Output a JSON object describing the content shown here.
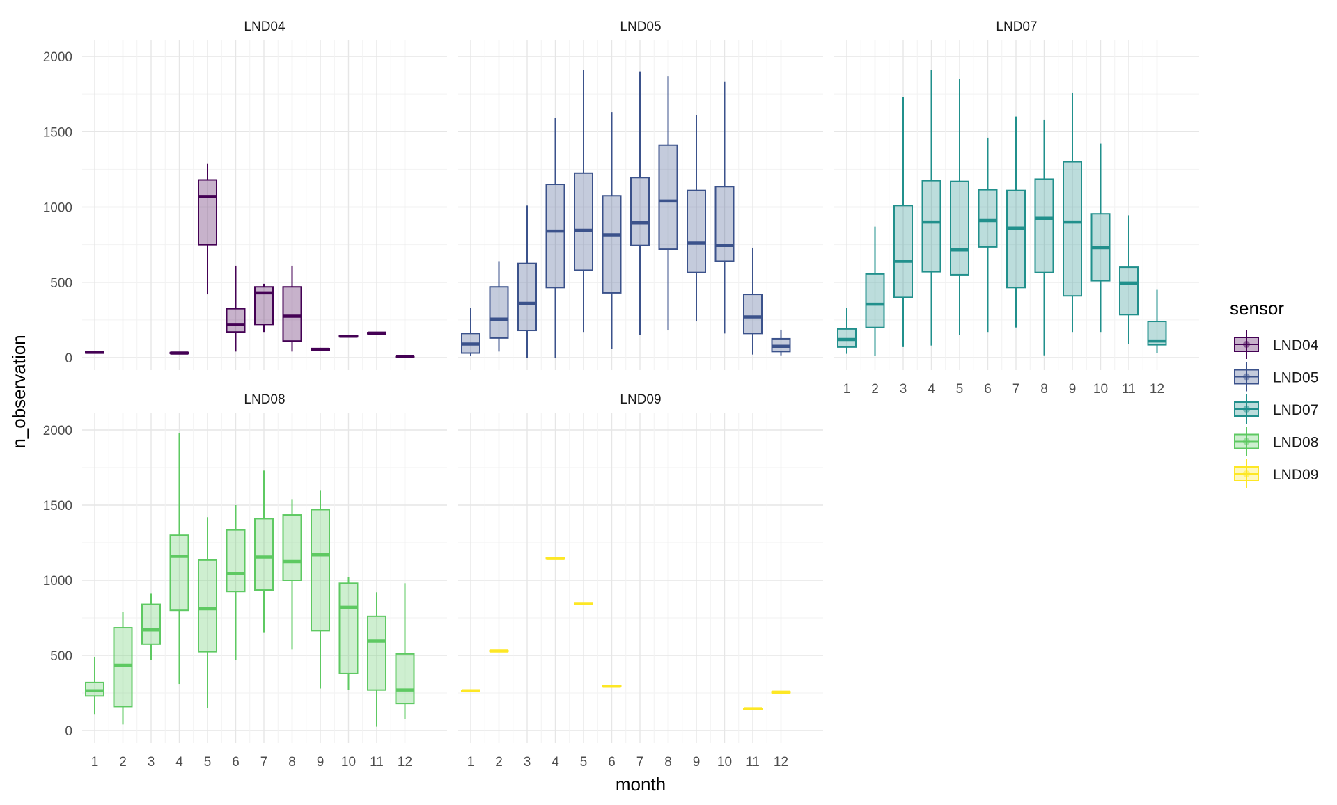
{
  "chart_data": {
    "type": "boxplot",
    "facet_by": "sensor",
    "xlabel": "month",
    "ylabel": "n_observation",
    "ylim": [
      0,
      2000
    ],
    "yticks": [
      0,
      500,
      1000,
      1500,
      2000
    ],
    "months": [
      1,
      2,
      3,
      4,
      5,
      6,
      7,
      8,
      9,
      10,
      11,
      12
    ],
    "grid": true,
    "legend": {
      "title": "sensor",
      "position": "right"
    },
    "panels": [
      {
        "name": "LND04",
        "color": "#440154",
        "boxes": [
          {
            "month": 1,
            "min": 30,
            "q1": 30,
            "median": 35,
            "q3": 38,
            "max": 40
          },
          {
            "month": 4,
            "min": 25,
            "q1": 28,
            "median": 30,
            "q3": 33,
            "max": 35
          },
          {
            "month": 5,
            "min": 420,
            "q1": 750,
            "median": 1070,
            "q3": 1180,
            "max": 1290
          },
          {
            "month": 6,
            "min": 40,
            "q1": 170,
            "median": 220,
            "q3": 325,
            "max": 610
          },
          {
            "month": 7,
            "min": 170,
            "q1": 220,
            "median": 430,
            "q3": 470,
            "max": 490
          },
          {
            "month": 8,
            "min": 40,
            "q1": 110,
            "median": 275,
            "q3": 470,
            "max": 610
          },
          {
            "month": 9,
            "min": 45,
            "q1": 48,
            "median": 55,
            "q3": 60,
            "max": 65
          },
          {
            "month": 10,
            "min": 135,
            "q1": 138,
            "median": 142,
            "q3": 146,
            "max": 150
          },
          {
            "month": 11,
            "min": 155,
            "q1": 158,
            "median": 162,
            "q3": 166,
            "max": 170
          },
          {
            "month": 12,
            "min": 5,
            "q1": 6,
            "median": 8,
            "q3": 10,
            "max": 12
          }
        ]
      },
      {
        "name": "LND05",
        "color": "#3b528b",
        "boxes": [
          {
            "month": 1,
            "min": 10,
            "q1": 30,
            "median": 90,
            "q3": 160,
            "max": 330
          },
          {
            "month": 2,
            "min": 40,
            "q1": 130,
            "median": 255,
            "q3": 470,
            "max": 640
          },
          {
            "month": 3,
            "min": 0,
            "q1": 180,
            "median": 360,
            "q3": 625,
            "max": 1010
          },
          {
            "month": 4,
            "min": 0,
            "q1": 465,
            "median": 840,
            "q3": 1150,
            "max": 1590
          },
          {
            "month": 5,
            "min": 170,
            "q1": 580,
            "median": 845,
            "q3": 1225,
            "max": 1910
          },
          {
            "month": 6,
            "min": 60,
            "q1": 430,
            "median": 815,
            "q3": 1075,
            "max": 1630
          },
          {
            "month": 7,
            "min": 150,
            "q1": 745,
            "median": 895,
            "q3": 1195,
            "max": 1900
          },
          {
            "month": 8,
            "min": 180,
            "q1": 720,
            "median": 1040,
            "q3": 1410,
            "max": 1870
          },
          {
            "month": 9,
            "min": 240,
            "q1": 565,
            "median": 760,
            "q3": 1110,
            "max": 1610
          },
          {
            "month": 10,
            "min": 160,
            "q1": 640,
            "median": 745,
            "q3": 1135,
            "max": 1830
          },
          {
            "month": 11,
            "min": 20,
            "q1": 160,
            "median": 270,
            "q3": 420,
            "max": 730
          },
          {
            "month": 12,
            "min": 15,
            "q1": 40,
            "median": 75,
            "q3": 125,
            "max": 185
          }
        ]
      },
      {
        "name": "LND07",
        "color": "#21908c",
        "boxes": [
          {
            "month": 1,
            "min": 25,
            "q1": 70,
            "median": 120,
            "q3": 190,
            "max": 330
          },
          {
            "month": 2,
            "min": 10,
            "q1": 200,
            "median": 355,
            "q3": 555,
            "max": 870
          },
          {
            "month": 3,
            "min": 70,
            "q1": 400,
            "median": 640,
            "q3": 1010,
            "max": 1730
          },
          {
            "month": 4,
            "min": 80,
            "q1": 570,
            "median": 900,
            "q3": 1175,
            "max": 1910
          },
          {
            "month": 5,
            "min": 150,
            "q1": 550,
            "median": 715,
            "q3": 1170,
            "max": 1850
          },
          {
            "month": 6,
            "min": 170,
            "q1": 735,
            "median": 910,
            "q3": 1115,
            "max": 1460
          },
          {
            "month": 7,
            "min": 200,
            "q1": 465,
            "median": 860,
            "q3": 1110,
            "max": 1600
          },
          {
            "month": 8,
            "min": 15,
            "q1": 565,
            "median": 925,
            "q3": 1185,
            "max": 1580
          },
          {
            "month": 9,
            "min": 170,
            "q1": 410,
            "median": 900,
            "q3": 1300,
            "max": 1760
          },
          {
            "month": 10,
            "min": 170,
            "q1": 510,
            "median": 730,
            "q3": 955,
            "max": 1420
          },
          {
            "month": 11,
            "min": 90,
            "q1": 285,
            "median": 495,
            "q3": 600,
            "max": 945
          },
          {
            "month": 12,
            "min": 30,
            "q1": 85,
            "median": 110,
            "q3": 240,
            "max": 450
          }
        ]
      },
      {
        "name": "LND08",
        "color": "#5ec962",
        "boxes": [
          {
            "month": 1,
            "min": 110,
            "q1": 230,
            "median": 265,
            "q3": 320,
            "max": 490
          },
          {
            "month": 2,
            "min": 40,
            "q1": 160,
            "median": 435,
            "q3": 685,
            "max": 790
          },
          {
            "month": 3,
            "min": 470,
            "q1": 575,
            "median": 670,
            "q3": 840,
            "max": 910
          },
          {
            "month": 4,
            "min": 310,
            "q1": 800,
            "median": 1160,
            "q3": 1300,
            "max": 1980
          },
          {
            "month": 5,
            "min": 150,
            "q1": 525,
            "median": 810,
            "q3": 1135,
            "max": 1420
          },
          {
            "month": 6,
            "min": 470,
            "q1": 925,
            "median": 1045,
            "q3": 1335,
            "max": 1500
          },
          {
            "month": 7,
            "min": 650,
            "q1": 935,
            "median": 1155,
            "q3": 1410,
            "max": 1730
          },
          {
            "month": 8,
            "min": 540,
            "q1": 1000,
            "median": 1125,
            "q3": 1435,
            "max": 1540
          },
          {
            "month": 9,
            "min": 280,
            "q1": 665,
            "median": 1170,
            "q3": 1470,
            "max": 1600
          },
          {
            "month": 10,
            "min": 270,
            "q1": 380,
            "median": 820,
            "q3": 980,
            "max": 1020
          },
          {
            "month": 11,
            "min": 25,
            "q1": 270,
            "median": 595,
            "q3": 760,
            "max": 920
          },
          {
            "month": 12,
            "min": 75,
            "q1": 180,
            "median": 270,
            "q3": 510,
            "max": 980
          }
        ]
      },
      {
        "name": "LND09",
        "color": "#fde725",
        "boxes": [
          {
            "month": 1,
            "min": 260,
            "q1": 262,
            "median": 265,
            "q3": 268,
            "max": 270
          },
          {
            "month": 2,
            "min": 525,
            "q1": 527,
            "median": 530,
            "q3": 533,
            "max": 535
          },
          {
            "month": 4,
            "min": 1140,
            "q1": 1142,
            "median": 1145,
            "q3": 1148,
            "max": 1150
          },
          {
            "month": 5,
            "min": 840,
            "q1": 842,
            "median": 845,
            "q3": 848,
            "max": 850
          },
          {
            "month": 6,
            "min": 290,
            "q1": 292,
            "median": 295,
            "q3": 298,
            "max": 300
          },
          {
            "month": 11,
            "min": 140,
            "q1": 142,
            "median": 145,
            "q3": 148,
            "max": 150
          },
          {
            "month": 12,
            "min": 250,
            "q1": 252,
            "median": 255,
            "q3": 258,
            "max": 260
          }
        ]
      }
    ]
  }
}
